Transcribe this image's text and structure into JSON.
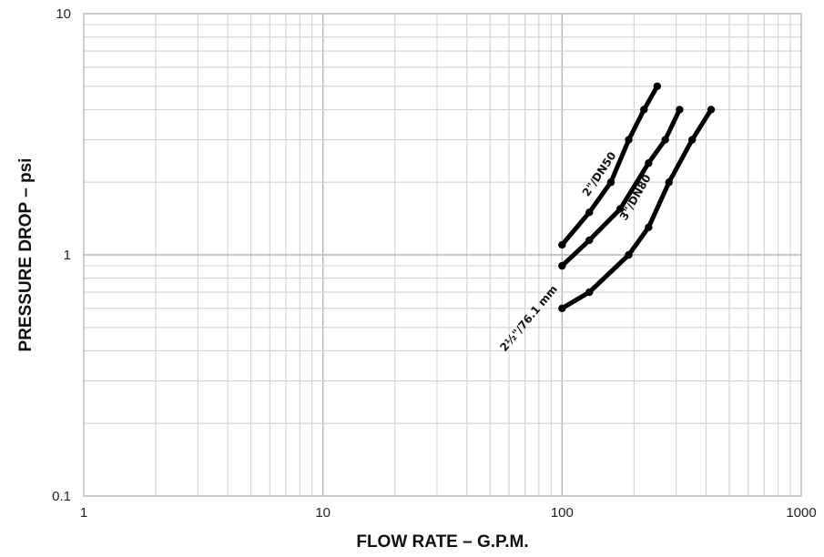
{
  "chart_data": {
    "type": "line",
    "xscale": "log",
    "yscale": "log",
    "xlim": [
      1,
      1000
    ],
    "ylim": [
      0.1,
      10
    ],
    "grid": true,
    "xlabel": "FLOW RATE – G.P.M.",
    "ylabel": "PRESSURE DROP – psi",
    "x_ticks": [
      "1",
      "10",
      "100",
      "1000"
    ],
    "y_ticks": [
      "0.1",
      "1",
      "10"
    ],
    "series": [
      {
        "name": "2\"/DN50",
        "x": [
          100,
          130,
          160,
          190,
          220,
          250
        ],
        "y": [
          1.1,
          1.5,
          2.0,
          3.0,
          4.0,
          5.0
        ]
      },
      {
        "name": "2½\"/76.1 mm",
        "x": [
          100,
          130,
          175,
          230,
          270,
          310
        ],
        "y": [
          0.9,
          1.15,
          1.55,
          2.4,
          3.0,
          4.0
        ]
      },
      {
        "name": "3\"/DN80",
        "x": [
          100,
          130,
          190,
          230,
          280,
          350,
          420
        ],
        "y": [
          0.6,
          0.7,
          1.0,
          1.3,
          2.0,
          3.0,
          4.0
        ]
      }
    ]
  }
}
